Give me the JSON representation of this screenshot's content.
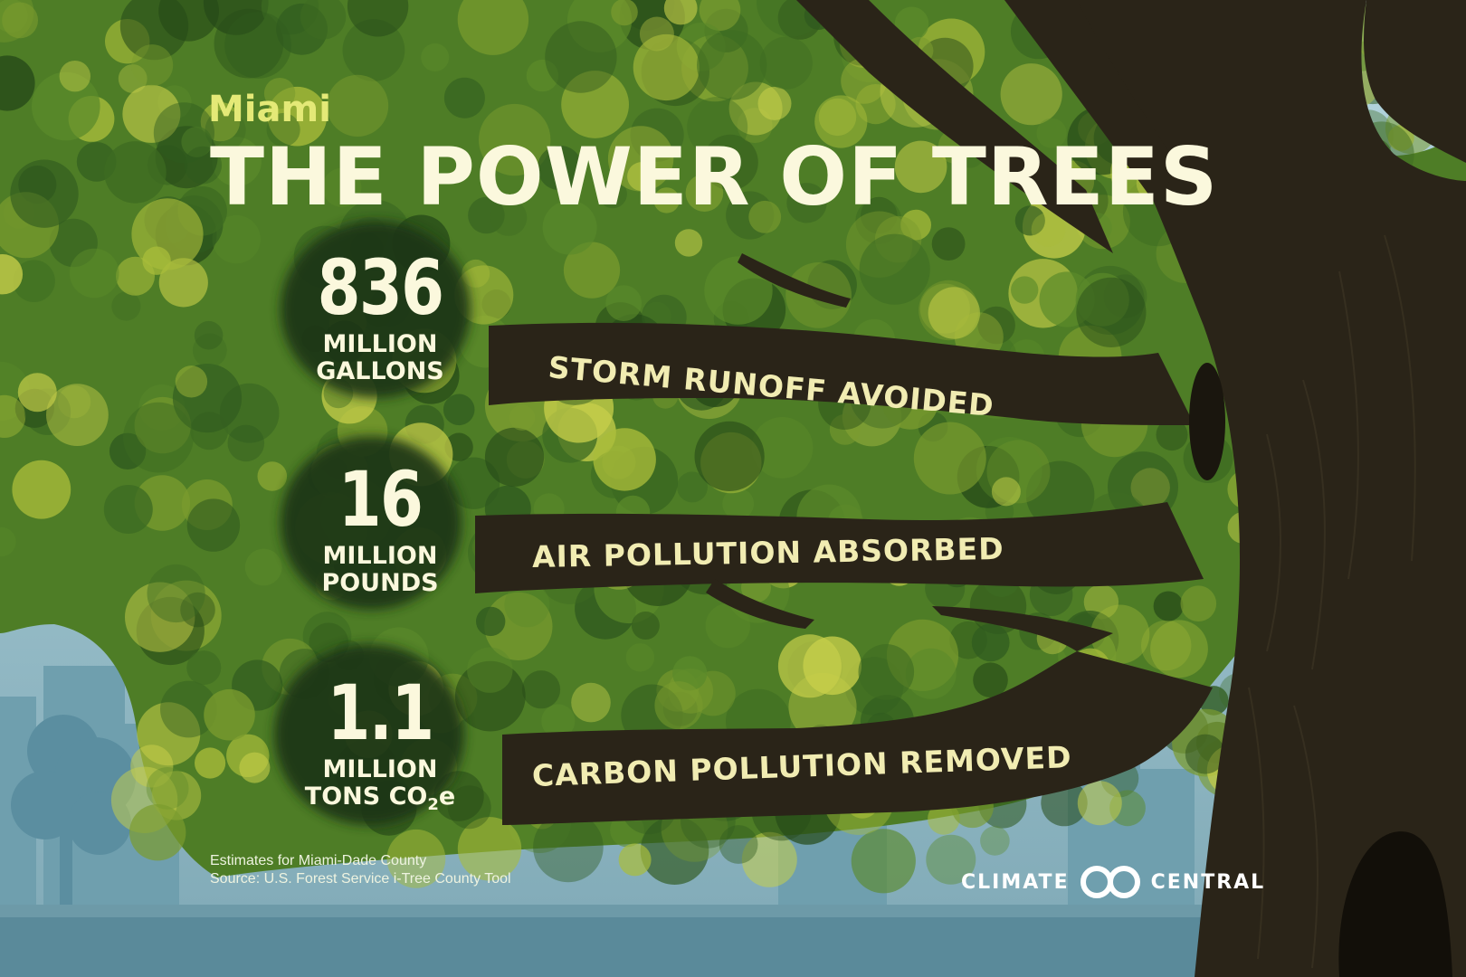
{
  "header": {
    "city": "Miami",
    "title": "THE POWER OF TREES"
  },
  "stats": [
    {
      "value": "836",
      "unit_line1": "MILLION",
      "unit_line2": "GALLONS",
      "unit_sub": "",
      "unit_suffix": "",
      "label": "STORM RUNOFF AVOIDED"
    },
    {
      "value": "16",
      "unit_line1": "MILLION",
      "unit_line2": "POUNDS",
      "unit_sub": "",
      "unit_suffix": "",
      "label": "AIR POLLUTION ABSORBED"
    },
    {
      "value": "1.1",
      "unit_line1": "MILLION",
      "unit_line2": "TONS CO",
      "unit_sub": "2",
      "unit_suffix": "e",
      "label": "CARBON POLLUTION REMOVED"
    }
  ],
  "footnote": {
    "line1": "Estimates for Miami-Dade County",
    "line2": "Source: U.S. Forest Service i-Tree County Tool"
  },
  "brand": {
    "left": "CLIMATE",
    "right": "CENTRAL",
    "mark_icon": "climate-central-logo-icon"
  },
  "colors": {
    "sky": "#9fc6d1",
    "canopy_dark": "#2f5a1f",
    "canopy_mid": "#5b8a2a",
    "canopy_light": "#b7c83f",
    "trunk": "#2a2418",
    "title_text": "#fbf8dd",
    "city_text": "#e4e977",
    "label_text": "#f1ecb2"
  }
}
